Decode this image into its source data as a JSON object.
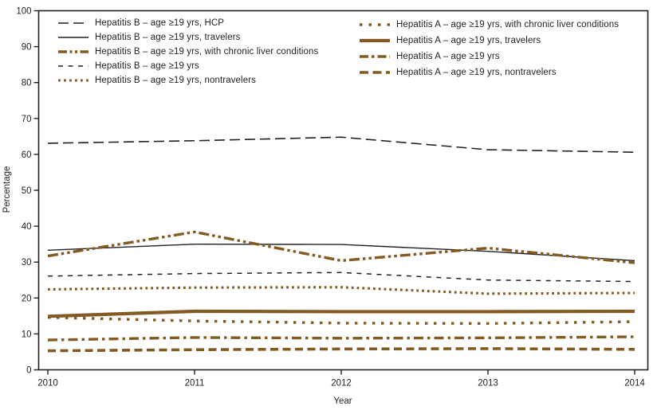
{
  "chart_data": {
    "type": "line",
    "title": "",
    "xlabel": "Year",
    "ylabel": "Percentage",
    "x": [
      2010,
      2011,
      2012,
      2013,
      2014
    ],
    "ylim": [
      0,
      100
    ],
    "ytick_interval": 10,
    "grid": false,
    "legend_position": "top-inside-two-columns",
    "colors": {
      "black": "#231f20",
      "brown": "#83592233"
    },
    "series": [
      {
        "name": "Hepatitis B – age ≥19 yrs, HCP",
        "color": "#231f20",
        "line_style": "long-dash",
        "legend_column": 1,
        "values": [
          63.1,
          63.8,
          64.8,
          61.3,
          60.6
        ]
      },
      {
        "name": "Hepatitis B – age ≥19 yrs, travelers",
        "color": "#231f20",
        "line_style": "solid-thin",
        "legend_column": 1,
        "values": [
          33.3,
          35.0,
          34.9,
          33.0,
          30.4
        ]
      },
      {
        "name": "Hepatitis B – age ≥19 yrs, with chronic liver conditions",
        "color": "#835a22",
        "line_style": "dash-dot-dot-thick",
        "legend_column": 1,
        "values": [
          31.7,
          38.4,
          30.4,
          33.9,
          29.8
        ]
      },
      {
        "name": "Hepatitis B – age ≥19 yrs",
        "color": "#231f20",
        "line_style": "dash",
        "legend_column": 1,
        "values": [
          26.1,
          26.8,
          27.1,
          25.0,
          24.6
        ]
      },
      {
        "name": "Hepatitis B – age ≥19 yrs, nontravelers",
        "color": "#835a22",
        "line_style": "dot-dense",
        "legend_column": 1,
        "values": [
          22.4,
          22.9,
          23.0,
          21.2,
          21.4
        ]
      },
      {
        "name": "Hepatitis A – age ≥19 yrs, with chronic liver conditions",
        "color": "#835a22",
        "line_style": "dot-sparse",
        "legend_column": 2,
        "values": [
          14.6,
          13.6,
          13.0,
          12.9,
          13.4
        ]
      },
      {
        "name": "Hepatitis A – age ≥19 yrs, travelers",
        "color": "#835a22",
        "line_style": "solid-thick",
        "legend_column": 2,
        "values": [
          14.9,
          16.3,
          16.2,
          16.2,
          16.3
        ]
      },
      {
        "name": "Hepatitis A – age ≥19 yrs",
        "color": "#835a22",
        "line_style": "dash-dot-thick",
        "legend_column": 2,
        "values": [
          8.3,
          9.0,
          8.8,
          8.9,
          9.2
        ]
      },
      {
        "name": "Hepatitis A – age ≥19 yrs, nontravelers",
        "color": "#835a22",
        "line_style": "dash-thick",
        "legend_column": 2,
        "values": [
          5.3,
          5.6,
          5.8,
          5.9,
          5.7
        ]
      }
    ]
  }
}
